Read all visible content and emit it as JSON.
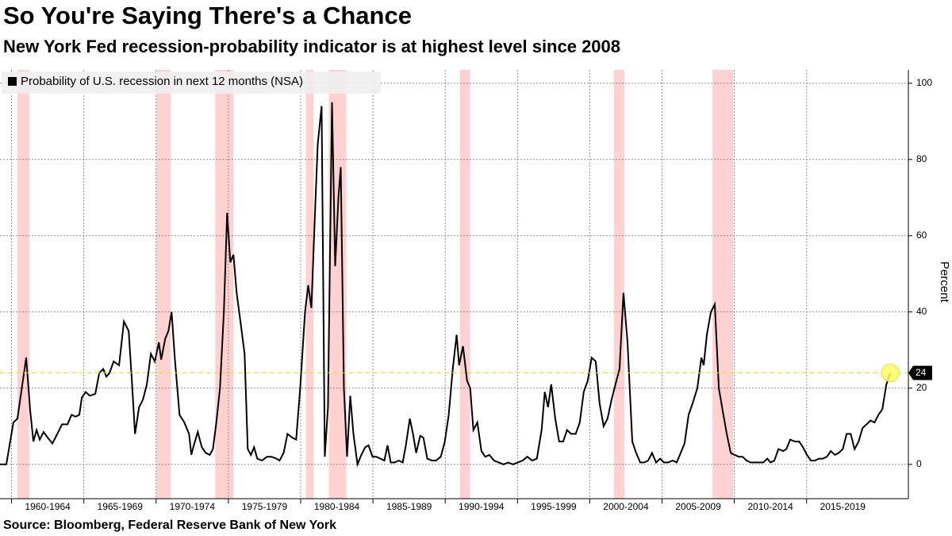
{
  "chart_data": {
    "type": "line",
    "title": "So You're Saying There's a Chance",
    "subtitle": "New York Fed recession-probability indicator is at highest level since 2008",
    "source": "Source: Bloomberg, Federal Reserve Bank of New York",
    "y_axis_label": "Percent",
    "legend_position": "top-left",
    "grid": true,
    "xlim": [
      1959.2,
      2022.04
    ],
    "ylim": [
      -9,
      103.5
    ],
    "yticks": [
      0,
      20,
      40,
      60,
      80,
      100
    ],
    "xticks": [
      {
        "value": 1960,
        "label": "1960-1964"
      },
      {
        "value": 1965,
        "label": "1965-1969"
      },
      {
        "value": 1970,
        "label": "1970-1974"
      },
      {
        "value": 1975,
        "label": "1975-1979"
      },
      {
        "value": 1980,
        "label": "1980-1984"
      },
      {
        "value": 1985,
        "label": "1985-1989"
      },
      {
        "value": 1990,
        "label": "1990-1994"
      },
      {
        "value": 1995,
        "label": "1995-1999"
      },
      {
        "value": 2000,
        "label": "2000-2004"
      },
      {
        "value": 2005,
        "label": "2005-2009"
      },
      {
        "value": 2010,
        "label": "2010-2014"
      },
      {
        "value": 2015,
        "label": "2015-2019"
      }
    ],
    "recessions": [
      [
        1960.41,
        1961.23
      ],
      [
        1970.02,
        1971.01
      ],
      [
        1974.09,
        1975.35
      ],
      [
        1980.35,
        1980.9
      ],
      [
        1981.95,
        1983.16
      ],
      [
        1991.01,
        1991.73
      ],
      [
        2001.67,
        2002.39
      ],
      [
        2008.49,
        2009.91
      ]
    ],
    "recession_color": "#ffcccc",
    "highlight_color": "#ffff66",
    "x": [
      1959.2,
      1959.64,
      1960.13,
      1960.41,
      1961.01,
      1961.29,
      1961.51,
      1961.73,
      1961.95,
      1962.22,
      1962.5,
      1962.83,
      1963.16,
      1963.49,
      1963.87,
      1964.15,
      1964.42,
      1964.69,
      1964.86,
      1965.13,
      1965.41,
      1965.79,
      1966.07,
      1966.34,
      1966.56,
      1966.78,
      1967.06,
      1967.44,
      1967.77,
      1968.1,
      1968.32,
      1968.54,
      1968.82,
      1969.09,
      1969.36,
      1969.64,
      1969.91,
      1970.19,
      1970.35,
      1970.63,
      1970.85,
      1971.07,
      1971.29,
      1971.62,
      1971.95,
      1972.28,
      1972.44,
      1972.61,
      1972.88,
      1973.16,
      1973.43,
      1973.71,
      1973.93,
      1974.15,
      1974.42,
      1974.69,
      1974.91,
      1975.13,
      1975.35,
      1975.57,
      1975.85,
      1976.12,
      1976.34,
      1976.56,
      1976.78,
      1977.0,
      1977.33,
      1977.66,
      1977.99,
      1978.32,
      1978.54,
      1978.82,
      1979.09,
      1979.42,
      1979.69,
      1979.97,
      1980.3,
      1980.52,
      1980.74,
      1980.96,
      1981.18,
      1981.45,
      1981.67,
      1981.89,
      1982.17,
      1982.39,
      1982.61,
      1982.77,
      1982.99,
      1983.21,
      1983.43,
      1983.65,
      1983.93,
      1984.2,
      1984.47,
      1984.69,
      1984.97,
      1985.24,
      1985.52,
      1985.79,
      1986.01,
      1986.23,
      1986.51,
      1986.78,
      1987.06,
      1987.28,
      1987.55,
      1987.77,
      1987.99,
      1988.27,
      1988.49,
      1988.76,
      1989.09,
      1989.36,
      1989.69,
      1989.97,
      1990.24,
      1990.52,
      1990.79,
      1990.96,
      1991.23,
      1991.51,
      1991.73,
      1991.95,
      1992.22,
      1992.5,
      1992.77,
      1993.05,
      1993.38,
      1993.71,
      1994.03,
      1994.36,
      1994.69,
      1995.02,
      1995.35,
      1995.68,
      1996.01,
      1996.34,
      1996.67,
      1996.89,
      1997.11,
      1997.33,
      1997.61,
      1997.88,
      1998.16,
      1998.43,
      1998.71,
      1999.03,
      1999.31,
      1999.58,
      1999.86,
      2000.13,
      2000.41,
      2000.68,
      2000.96,
      2001.23,
      2001.51,
      2001.78,
      2002.06,
      2002.33,
      2002.61,
      2002.94,
      2003.21,
      2003.49,
      2003.76,
      2004.04,
      2004.31,
      2004.59,
      2004.86,
      2005.13,
      2005.41,
      2005.74,
      2006.01,
      2006.29,
      2006.56,
      2006.84,
      2007.11,
      2007.44,
      2007.72,
      2007.88,
      2008.1,
      2008.38,
      2008.65,
      2008.93,
      2009.2,
      2009.48,
      2009.75,
      2010.02,
      2010.3,
      2010.57,
      2010.85,
      2011.12,
      2011.4,
      2011.73,
      2012.0,
      2012.28,
      2012.5,
      2012.77,
      2013.05,
      2013.38,
      2013.6,
      2013.87,
      2014.2,
      2014.48,
      2014.75,
      2015.02,
      2015.3,
      2015.57,
      2015.85,
      2016.12,
      2016.4,
      2016.67,
      2016.95,
      2017.22,
      2017.5,
      2017.77,
      2018.05,
      2018.32,
      2018.6,
      2018.87,
      2019.15,
      2019.42,
      2019.7,
      2019.97,
      2020.24,
      2020.52,
      2020.79
    ],
    "series": [
      {
        "name": "Probability of U.S. recession in next 12 months (NSA)",
        "color": "#000000",
        "values": [
          0,
          0,
          11,
          12,
          28,
          14,
          6,
          9,
          6.5,
          8.5,
          7,
          5.5,
          8,
          10.5,
          10.5,
          13,
          12.5,
          13,
          17.5,
          19,
          18,
          18.5,
          24,
          25,
          23,
          24,
          27,
          26,
          37.5,
          35,
          22,
          8,
          15,
          17,
          21,
          29,
          27,
          32,
          27.5,
          33,
          35,
          40,
          28,
          13,
          11,
          8,
          2.5,
          5,
          8.5,
          4.5,
          3,
          2.5,
          4,
          10.5,
          20,
          40,
          66,
          53,
          55,
          45,
          37,
          29,
          4,
          2.5,
          4.5,
          1.5,
          1,
          2,
          2,
          1.5,
          1,
          3,
          8,
          7,
          6.5,
          20,
          40,
          47,
          41,
          63,
          84,
          94,
          2,
          15,
          95,
          52,
          70,
          78,
          20,
          2,
          18,
          8,
          0,
          2.5,
          4.5,
          5,
          2,
          2,
          1.5,
          1,
          5,
          0.5,
          0.5,
          1,
          0.5,
          5,
          12,
          8,
          3,
          7.5,
          7,
          1.5,
          1,
          1,
          2,
          6,
          13,
          25,
          34,
          26,
          31,
          22,
          20,
          9,
          11,
          3.5,
          2,
          2.5,
          1,
          0.5,
          0,
          0.5,
          0,
          0.5,
          1,
          2,
          1,
          1.5,
          9,
          19,
          15,
          21,
          12,
          6,
          6,
          9,
          8,
          8,
          11,
          19,
          22,
          28,
          27,
          16,
          10,
          12,
          17,
          21,
          25,
          45,
          32,
          6,
          3,
          0.5,
          0.5,
          1,
          3,
          0.5,
          1.5,
          0.5,
          0.5,
          1,
          0.5,
          3,
          5.5,
          13,
          16,
          20,
          28,
          26,
          34,
          40,
          42,
          20,
          14,
          8,
          3,
          2.5,
          2,
          2,
          1,
          0.5,
          0.5,
          0.5,
          0.5,
          1.5,
          0.5,
          1,
          4,
          3.5,
          4,
          6.5,
          6,
          6,
          4.5,
          2.5,
          1,
          1,
          1.5,
          1.5,
          2,
          3.5,
          2.5,
          3,
          4,
          8,
          8,
          4,
          6,
          9.5,
          10.5,
          11.5,
          11,
          13,
          14.5,
          21,
          24
        ]
      }
    ]
  }
}
